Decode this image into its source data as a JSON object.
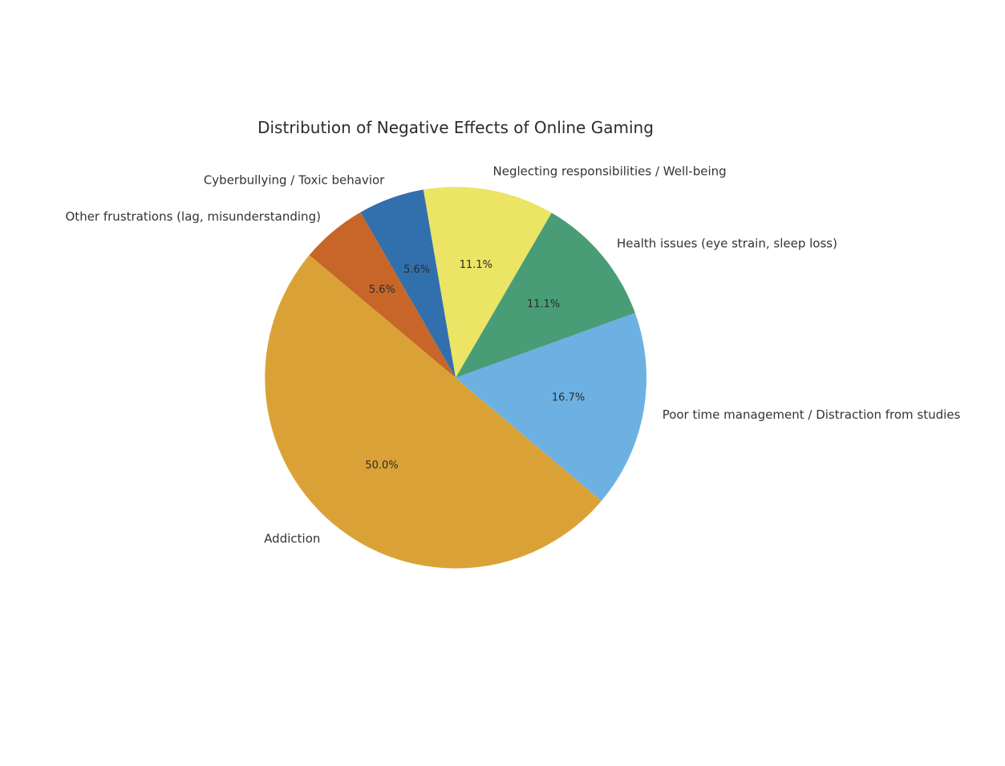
{
  "chart_data": {
    "type": "pie",
    "title": "Distribution of Negative Effects of Online Gaming",
    "start_angle_deg": 140,
    "direction": "counterclockwise",
    "slices": [
      {
        "label": "Addiction",
        "value": 50.0,
        "pct_label": "50.0%",
        "color": "#DAA236"
      },
      {
        "label": "Poor time management / Distraction from studies",
        "value": 16.7,
        "pct_label": "16.7%",
        "color": "#6DB1E2"
      },
      {
        "label": "Health issues (eye strain, sleep loss)",
        "value": 11.1,
        "pct_label": "11.1%",
        "color": "#489D77"
      },
      {
        "label": "Neglecting responsibilities / Well-being",
        "value": 11.1,
        "pct_label": "11.1%",
        "color": "#EBE464"
      },
      {
        "label": "Cyberbullying / Toxic behavior",
        "value": 5.6,
        "pct_label": "5.6%",
        "color": "#3170AD"
      },
      {
        "label": "Other frustrations (lag, misunderstanding)",
        "value": 5.6,
        "pct_label": "5.6%",
        "color": "#C76628"
      }
    ]
  }
}
